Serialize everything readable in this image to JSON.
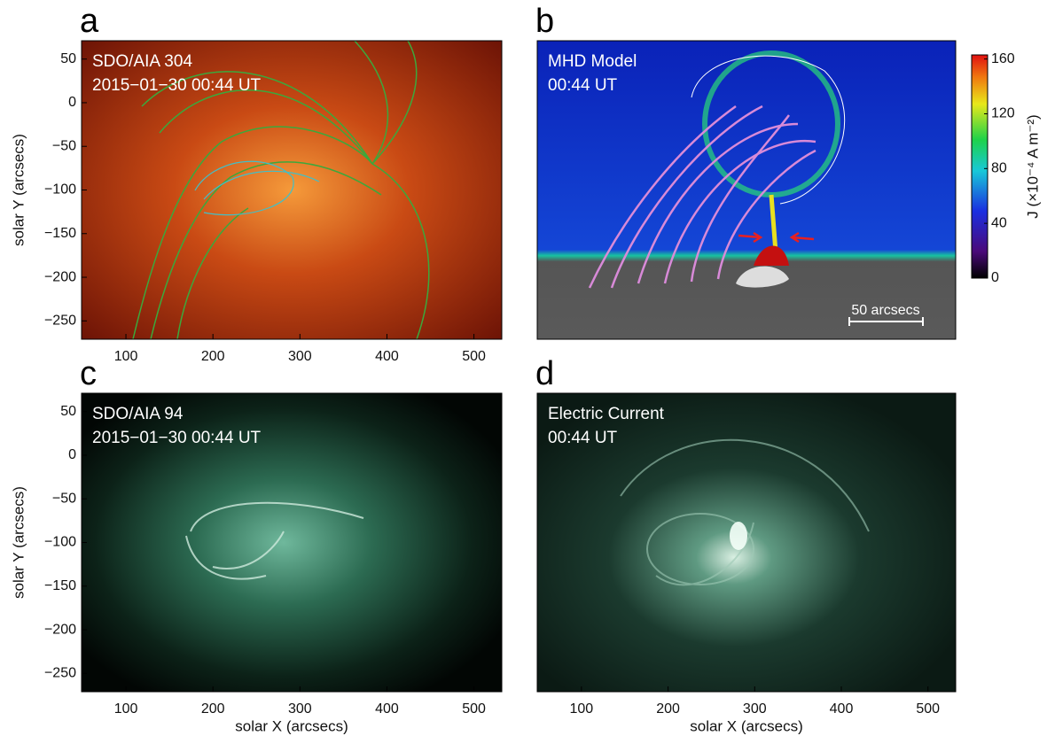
{
  "panels": [
    {
      "letter": "a",
      "lines": [
        "SDO/AIA 304",
        "2015−01−30 00:44 UT"
      ],
      "xlim": [
        49,
        532
      ],
      "ylim": [
        -271,
        71
      ],
      "xticks": [
        100,
        200,
        300,
        400,
        500
      ],
      "yticks": [
        50,
        0,
        {
          "value": -50,
          "label": "−50"
        },
        {
          "value": -100,
          "label": "−100"
        },
        {
          "value": -150,
          "label": "−150"
        },
        {
          "value": -200,
          "label": "−200"
        },
        {
          "value": -250,
          "label": "−250"
        }
      ],
      "y_label": "solar Y (arcsecs)"
    },
    {
      "letter": "b",
      "lines": [
        "MHD Model",
        "00:44 UT"
      ],
      "scale_bar": "50 arcsecs",
      "colorbar": {
        "label": "J (×10⁻⁴ A m⁻²)",
        "clim": [
          0,
          163
        ],
        "ticks": [
          0,
          40,
          80,
          120,
          160
        ]
      }
    },
    {
      "letter": "c",
      "lines": [
        "SDO/AIA 94",
        "2015−01−30 00:44 UT"
      ],
      "xlim": [
        49,
        532
      ],
      "ylim": [
        -271,
        71
      ],
      "xticks": [
        100,
        200,
        300,
        400,
        500
      ],
      "yticks": [
        50,
        0,
        {
          "value": -50,
          "label": "−50"
        },
        {
          "value": -100,
          "label": "−100"
        },
        {
          "value": -150,
          "label": "−150"
        },
        {
          "value": -200,
          "label": "−200"
        },
        {
          "value": -250,
          "label": "−250"
        }
      ],
      "y_label": "solar Y (arcsecs)",
      "x_label": "solar X (arcsecs)"
    },
    {
      "letter": "d",
      "lines": [
        "Electric Current",
        "00:44 UT"
      ],
      "xlim": [
        49,
        532
      ],
      "xticks": [
        100,
        200,
        300,
        400,
        500
      ],
      "x_label": "solar X (arcsecs)"
    }
  ]
}
